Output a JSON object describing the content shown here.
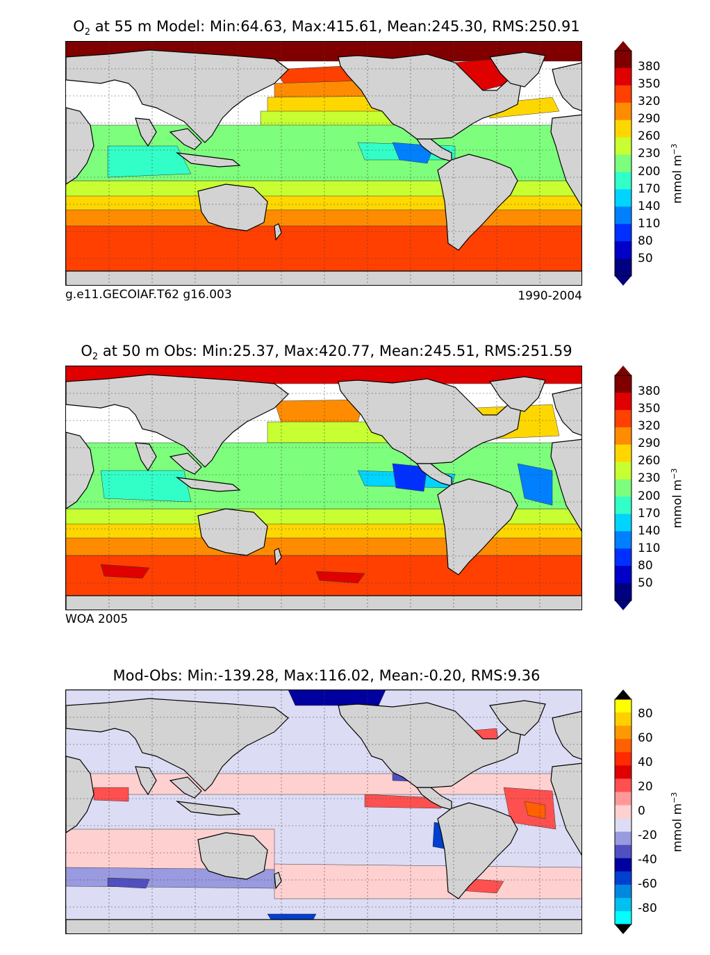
{
  "chart_data": [
    {
      "type": "heatmap",
      "title_prefix": "O",
      "title_sub": "2",
      "title_rest": " at 55 m Model: Min:64.63, Max:415.61, Mean:245.30, RMS:250.91",
      "caption_left": "g.e11.GECOIAF.T62 g16.003",
      "caption_right": "1990-2004",
      "colorbar_label": "mmol m",
      "colorbar_label_sup": "−3",
      "colorbar_ticks": [
        "380",
        "350",
        "320",
        "290",
        "260",
        "230",
        "200",
        "170",
        "140",
        "110",
        "80",
        "50"
      ],
      "colorbar_colors": [
        "#800000",
        "#e00000",
        "#ff4000",
        "#ff8c00",
        "#ffd700",
        "#c8ff32",
        "#7dff7d",
        "#32ffc8",
        "#00d4ff",
        "#0080ff",
        "#0030ff",
        "#0000c8",
        "#000080"
      ],
      "value_range": [
        50,
        380
      ],
      "units": "mmol m-3"
    },
    {
      "type": "heatmap",
      "title_prefix": "O",
      "title_sub": "2",
      "title_rest": " at 50 m Obs: Min:25.37, Max:420.77, Mean:245.51, RMS:251.59",
      "caption_left": "WOA 2005",
      "caption_right": "",
      "colorbar_label": "mmol m",
      "colorbar_label_sup": "−3",
      "colorbar_ticks": [
        "380",
        "350",
        "320",
        "290",
        "260",
        "230",
        "200",
        "170",
        "140",
        "110",
        "80",
        "50"
      ],
      "colorbar_colors": [
        "#800000",
        "#e00000",
        "#ff4000",
        "#ff8c00",
        "#ffd700",
        "#c8ff32",
        "#7dff7d",
        "#32ffc8",
        "#00d4ff",
        "#0080ff",
        "#0030ff",
        "#0000c8",
        "#000080"
      ],
      "value_range": [
        50,
        380
      ],
      "units": "mmol m-3"
    },
    {
      "type": "heatmap",
      "title_prefix": "",
      "title_sub": "",
      "title_rest": "Mod-Obs: Min:-139.28, Max:116.02, Mean:-0.20, RMS:9.36",
      "caption_left": "",
      "caption_right": "",
      "colorbar_label": "mmol m",
      "colorbar_label_sup": "−3",
      "colorbar_ticks": [
        "80",
        "60",
        "40",
        "20",
        "0",
        "-20",
        "-40",
        "-60",
        "-80"
      ],
      "colorbar_colors": [
        "#ffff00",
        "#ffd000",
        "#ff9900",
        "#ff6000",
        "#ff2a00",
        "#e00000",
        "#ff5050",
        "#ff9999",
        "#ffd0d0",
        "#dcdcf5",
        "#9a9ae0",
        "#5050c0",
        "#0000a0",
        "#0040d0",
        "#0088e0",
        "#00c0f0",
        "#00ffff"
      ],
      "value_range": [
        -80,
        80
      ],
      "units": "mmol m-3"
    }
  ]
}
